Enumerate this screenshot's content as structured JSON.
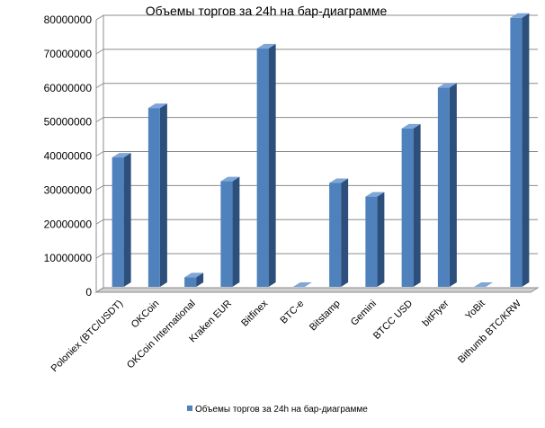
{
  "chart_data": {
    "type": "bar",
    "title": "Объемы торгов за 24h на бар-диаграмме",
    "xlabel": "",
    "ylabel": "",
    "categories": [
      "Poloniex (BTC/USDT)",
      "OKCoin",
      "OKCoin International",
      "Kraken EUR",
      "Bitfinex",
      "BTC-e",
      "Bitstamp",
      "Gemini",
      "BTCC USD",
      "bitFlyer",
      "YoBit",
      "Bithumb BTC/KRW"
    ],
    "series": [
      {
        "name": "Объемы торгов за 24h на бар-диаграмме",
        "values": [
          38000000,
          52500000,
          2800000,
          31000000,
          70000000,
          0,
          30500000,
          26500000,
          46500000,
          58500000,
          0,
          79000000
        ]
      }
    ],
    "ylim": [
      0,
      80000000
    ],
    "yticks": [
      "0",
      "10000000",
      "20000000",
      "30000000",
      "40000000",
      "50000000",
      "60000000",
      "70000000",
      "80000000"
    ],
    "grid": true,
    "legend_position": "bottom",
    "colors": {
      "bar_front": "#4f81bd",
      "bar_side": "#2c4f7c",
      "bar_top": "#7ea6d8",
      "grid": "#8c8c8c",
      "floor": "#d0d0d0"
    }
  }
}
